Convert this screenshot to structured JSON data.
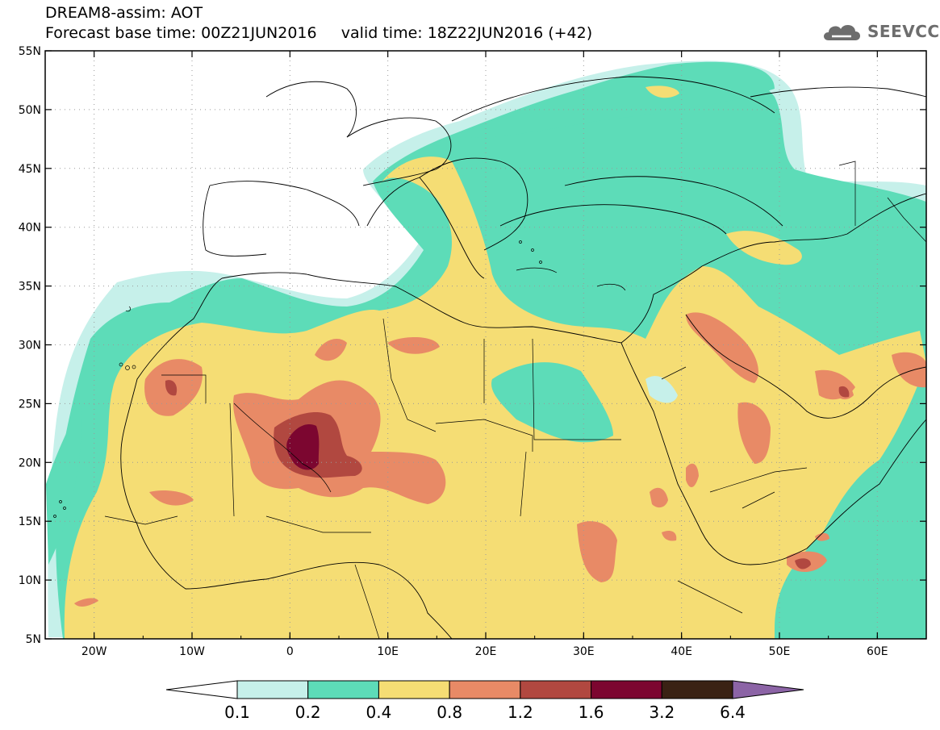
{
  "header": {
    "title": "DREAM8-assim: AOT",
    "base_time": "Forecast base time: 00Z21JUN2016",
    "valid_time": "valid time: 18Z22JUN2016 (+42)"
  },
  "logo": {
    "text": "SEEVCCC",
    "icon": "cloud-icon"
  },
  "map": {
    "lon_range": [
      -25,
      65
    ],
    "lat_range": [
      5,
      55
    ],
    "lon_ticks": [
      {
        "value": -20,
        "label": "20W"
      },
      {
        "value": -10,
        "label": "10W"
      },
      {
        "value": 0,
        "label": "0"
      },
      {
        "value": 10,
        "label": "10E"
      },
      {
        "value": 20,
        "label": "20E"
      },
      {
        "value": 30,
        "label": "30E"
      },
      {
        "value": 40,
        "label": "40E"
      },
      {
        "value": 50,
        "label": "50E"
      },
      {
        "value": 60,
        "label": "60E"
      }
    ],
    "lat_ticks": [
      {
        "value": 55,
        "label": "55N"
      },
      {
        "value": 50,
        "label": "50N"
      },
      {
        "value": 45,
        "label": "45N"
      },
      {
        "value": 40,
        "label": "40N"
      },
      {
        "value": 35,
        "label": "35N"
      },
      {
        "value": 30,
        "label": "30N"
      },
      {
        "value": 25,
        "label": "25N"
      },
      {
        "value": 20,
        "label": "20N"
      },
      {
        "value": 15,
        "label": "15N"
      },
      {
        "value": 10,
        "label": "10N"
      },
      {
        "value": 5,
        "label": "5N"
      }
    ],
    "grid": "dotted"
  },
  "legend": {
    "colors": [
      "#ffffff",
      "#c6f0ea",
      "#5ddcb8",
      "#f5dd74",
      "#e88a66",
      "#b14840",
      "#7c0630",
      "#3a2214",
      "#8c64a6"
    ],
    "labels": [
      "0.1",
      "0.2",
      "0.4",
      "0.8",
      "1.2",
      "1.6",
      "3.2",
      "6.4"
    ]
  }
}
